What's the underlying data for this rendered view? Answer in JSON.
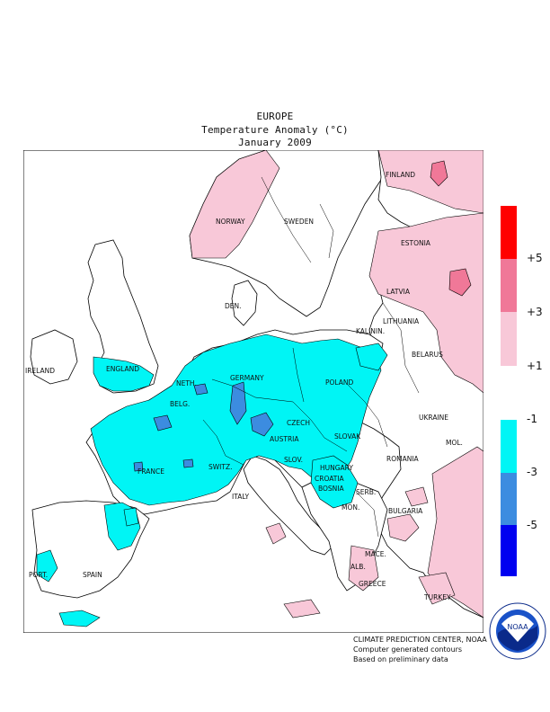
{
  "title": {
    "line1": "EUROPE",
    "line2": "Temperature Anomaly (°C)",
    "line3": "January 2009"
  },
  "colors": {
    "plus5": "#ff0000",
    "plus3": "#f07898",
    "plus1": "#f8c8d8",
    "neutral": "#ffffff",
    "minus1": "#00f5f5",
    "minus3": "#3c8ce0",
    "minus5": "#0000f0"
  },
  "legend": {
    "labels": [
      "+5",
      "+3",
      "+1",
      "-1",
      "-3",
      "-5"
    ]
  },
  "countries": {
    "finland": "FINLAND",
    "norway": "NORWAY",
    "sweden": "SWEDEN",
    "estonia": "ESTONIA",
    "latvia": "LATVIA",
    "lithuania": "LITHUANIA",
    "kalinin": "KALININ.",
    "belarus": "BELARUS",
    "den": "DEN.",
    "ireland": "IRELAND",
    "england": "ENGLAND",
    "neth": "NETH.",
    "belg": "BELG.",
    "germany": "GERMANY",
    "poland": "POLAND",
    "czech": "CZECH",
    "slovak": "SLOVAK",
    "ukraine": "UKRAINE",
    "france": "FRANCE",
    "switz": "SWITZ.",
    "austria": "AUSTRIA",
    "hungary": "HUNGARY",
    "mol": "MOL.",
    "romania": "ROMANIA",
    "slov": "SLOV.",
    "croatia": "CROATIA",
    "italy": "ITALY",
    "bosnia": "BOSNIA",
    "serb": "SERB.",
    "mon": "MON.",
    "bulgaria": "BULGARIA",
    "mace": "MACE.",
    "alb": "ALB.",
    "greece": "GREECE",
    "turkey": "TURKEY",
    "port": "PORT.",
    "spain": "SPAIN"
  },
  "credits": {
    "line1": "CLIMATE PREDICTION CENTER, NOAA",
    "line2": "Computer generated contours",
    "line3": "Based on preliminary data"
  },
  "logo": {
    "text": "NOAA",
    "ring_text": "NATIONAL OCEANIC AND ATMOSPHERIC ADMINISTRATION · U.S. DEPARTMENT OF COMMERCE"
  }
}
